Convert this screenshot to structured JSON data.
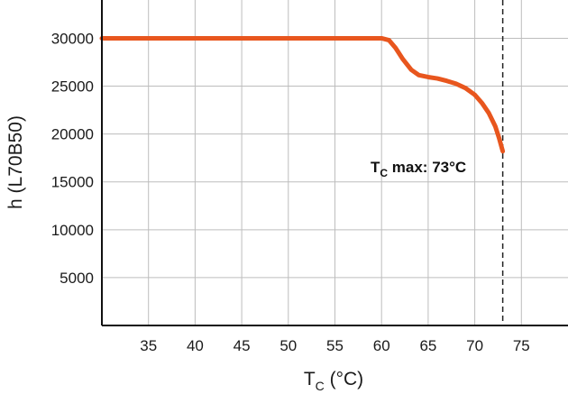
{
  "chart_data": {
    "type": "line",
    "xlabel_main": "T",
    "xlabel_sub": "C",
    "xlabel_unit": " (°C)",
    "ylabel": "h (L70B50)",
    "xlim": [
      30,
      80
    ],
    "ylim": [
      0,
      34000
    ],
    "x_ticks": [
      35,
      40,
      45,
      50,
      55,
      60,
      65,
      70,
      75
    ],
    "y_ticks": [
      5000,
      10000,
      15000,
      20000,
      25000,
      30000
    ],
    "y_tick_labels": [
      "5000",
      "10000",
      "15000",
      "20000",
      "25000",
      "30000"
    ],
    "grid": true,
    "series": [
      {
        "color": "#e8561e",
        "x": [
          30,
          60,
          60.8,
          61.5,
          62.3,
          63.2,
          64,
          65,
          66,
          67,
          68,
          69,
          70,
          70.8,
          71.5,
          72.2,
          72.6,
          73
        ],
        "y": [
          30000,
          30000,
          29800,
          29000,
          27800,
          26700,
          26150,
          25950,
          25800,
          25550,
          25250,
          24800,
          24100,
          23200,
          22200,
          20800,
          19600,
          18200
        ]
      }
    ],
    "vline": {
      "x": 73,
      "style": "dashed"
    },
    "annotation": {
      "prefix": "T",
      "sub": "C",
      "suffix": " max: 73°C"
    }
  }
}
